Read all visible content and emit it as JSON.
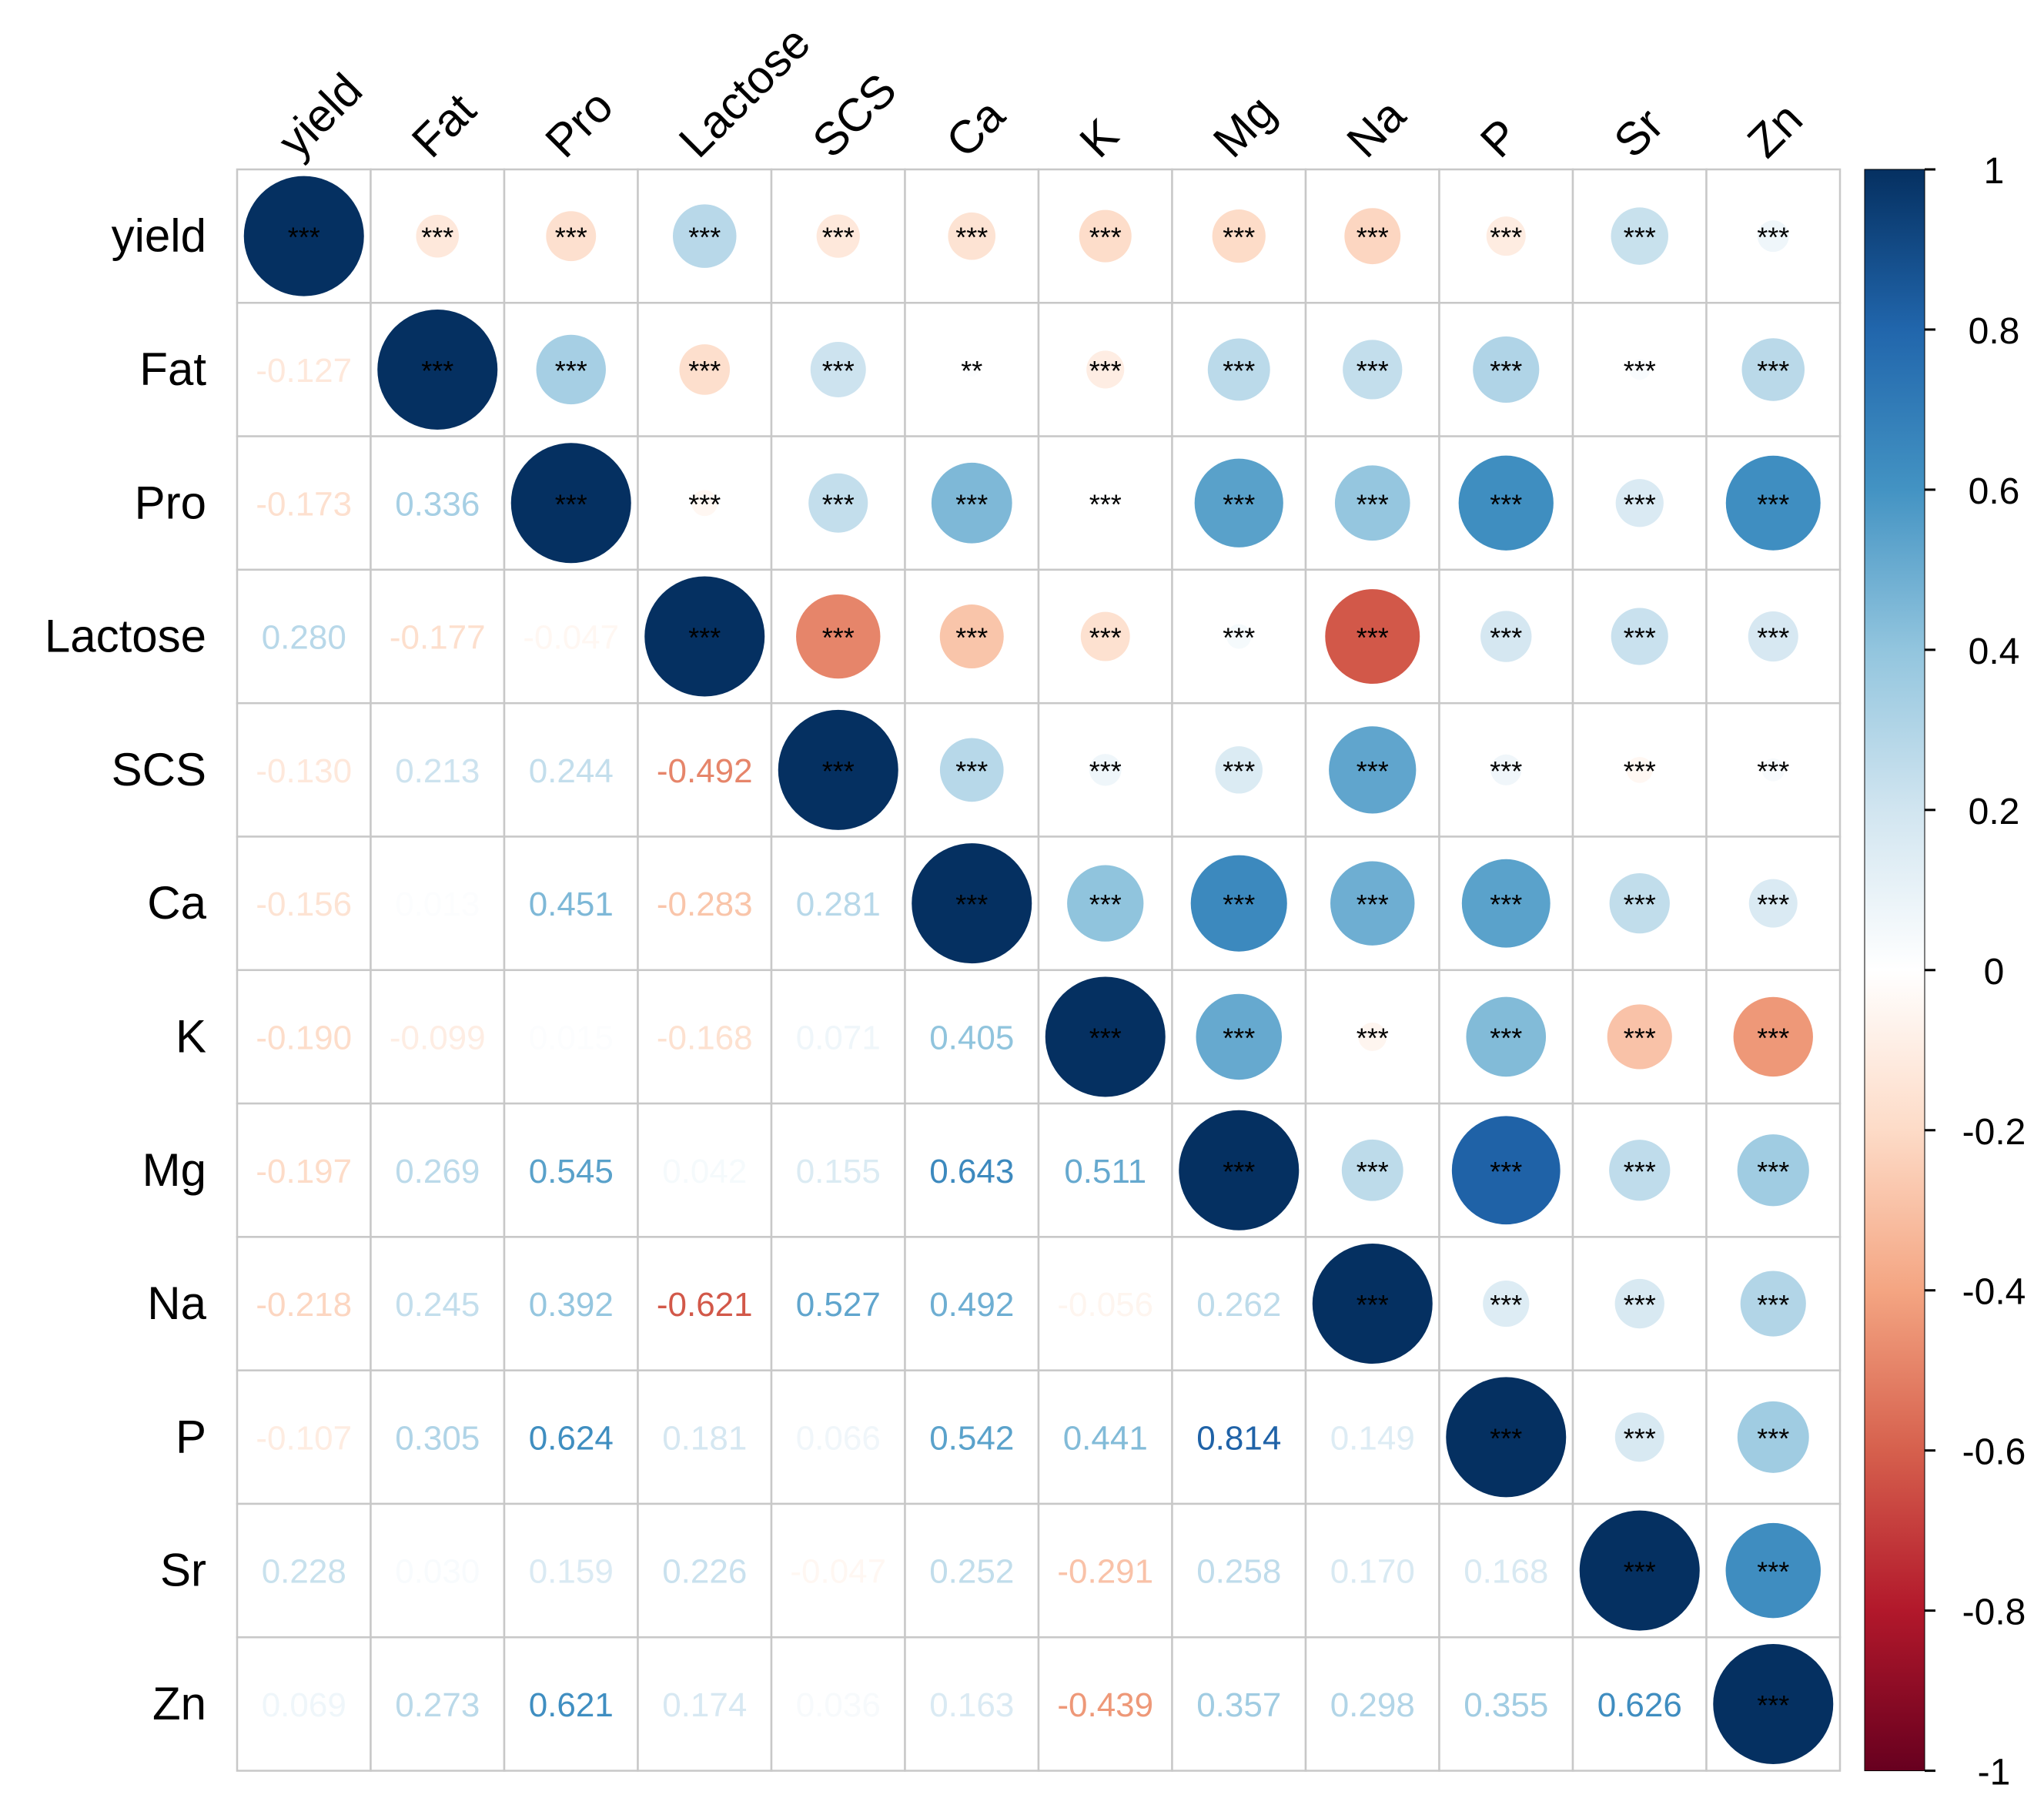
{
  "chart_data": {
    "type": "heatmap",
    "title": "",
    "variables": [
      "yield",
      "Fat",
      "Pro",
      "Lactose",
      "SCS",
      "Ca",
      "K",
      "Mg",
      "Na",
      "P",
      "Sr",
      "Zn"
    ],
    "correlations": [
      [
        1.0,
        -0.127,
        -0.173,
        0.28,
        -0.13,
        -0.156,
        -0.19,
        -0.197,
        -0.218,
        -0.107,
        0.228,
        0.069
      ],
      [
        -0.127,
        1.0,
        0.336,
        -0.177,
        0.213,
        0.013,
        -0.099,
        0.269,
        0.245,
        0.305,
        0.03,
        0.273
      ],
      [
        -0.173,
        0.336,
        1.0,
        -0.047,
        0.244,
        0.451,
        0.015,
        0.545,
        0.392,
        0.624,
        0.159,
        0.621
      ],
      [
        0.28,
        -0.177,
        -0.047,
        1.0,
        -0.492,
        -0.283,
        -0.168,
        0.042,
        -0.621,
        0.181,
        0.226,
        0.174
      ],
      [
        -0.13,
        0.213,
        0.244,
        -0.492,
        1.0,
        0.281,
        0.071,
        0.155,
        0.527,
        0.066,
        -0.047,
        0.036
      ],
      [
        -0.156,
        0.013,
        0.451,
        -0.283,
        0.281,
        1.0,
        0.405,
        0.643,
        0.492,
        0.542,
        0.252,
        0.163
      ],
      [
        -0.19,
        -0.099,
        0.015,
        -0.168,
        0.071,
        0.405,
        1.0,
        0.511,
        -0.056,
        0.441,
        -0.291,
        -0.439
      ],
      [
        -0.197,
        0.269,
        0.545,
        0.042,
        0.155,
        0.643,
        0.511,
        1.0,
        0.262,
        0.814,
        0.258,
        0.357
      ],
      [
        -0.218,
        0.245,
        0.392,
        -0.621,
        0.527,
        0.492,
        -0.056,
        0.262,
        1.0,
        0.149,
        0.17,
        0.298
      ],
      [
        -0.107,
        0.305,
        0.624,
        0.181,
        0.066,
        0.542,
        0.441,
        0.814,
        0.149,
        1.0,
        0.168,
        0.355
      ],
      [
        0.228,
        0.03,
        0.159,
        0.226,
        -0.047,
        0.252,
        -0.291,
        0.258,
        0.17,
        0.168,
        1.0,
        0.626
      ],
      [
        0.069,
        0.273,
        0.621,
        0.174,
        0.036,
        0.163,
        -0.439,
        0.357,
        0.298,
        0.355,
        0.626,
        1.0
      ]
    ],
    "lower_triangle_labels": [
      [],
      [
        "-0.127"
      ],
      [
        "-0.173",
        "0.336"
      ],
      [
        "0.280",
        "-0.177",
        "-0.047"
      ],
      [
        "-0.130",
        "0.213",
        "0.244",
        "-0.492"
      ],
      [
        "-0.156",
        "0.013",
        "0.451",
        "-0.283",
        "0.281"
      ],
      [
        "-0.190",
        "-0.099",
        "0.015",
        "-0.168",
        "0.071",
        "0.405"
      ],
      [
        "-0.197",
        "0.269",
        "0.545",
        "0.042",
        "0.155",
        "0.643",
        "0.511"
      ],
      [
        "-0.218",
        "0.245",
        "0.392",
        "-0.621",
        "0.527",
        "0.492",
        "-0.056",
        "0.262"
      ],
      [
        "-0.107",
        "0.305",
        "0.624",
        "0.181",
        "0.066",
        "0.542",
        "0.441",
        "0.814",
        "0.149"
      ],
      [
        "0.228",
        "0.030",
        "0.159",
        "0.226",
        "-0.047",
        "0.252",
        "-0.291",
        "0.258",
        "0.170",
        "0.168"
      ],
      [
        "0.069",
        "0.273",
        "0.621",
        "0.174",
        "0.036",
        "0.163",
        "-0.439",
        "0.357",
        "0.298",
        "0.355",
        "0.626"
      ]
    ],
    "significance": {
      "1": {
        "5": "**"
      },
      "default": "***"
    },
    "upper_display": "circle",
    "lower_display": "number",
    "colorbar": {
      "range": [
        -1,
        1
      ],
      "ticks": [
        "1",
        "0.8",
        "0.6",
        "0.4",
        "0.2",
        "0",
        "-0.2",
        "-0.4",
        "-0.6",
        "-0.8",
        "-1"
      ],
      "palette": "RdBu",
      "position": "right"
    }
  }
}
